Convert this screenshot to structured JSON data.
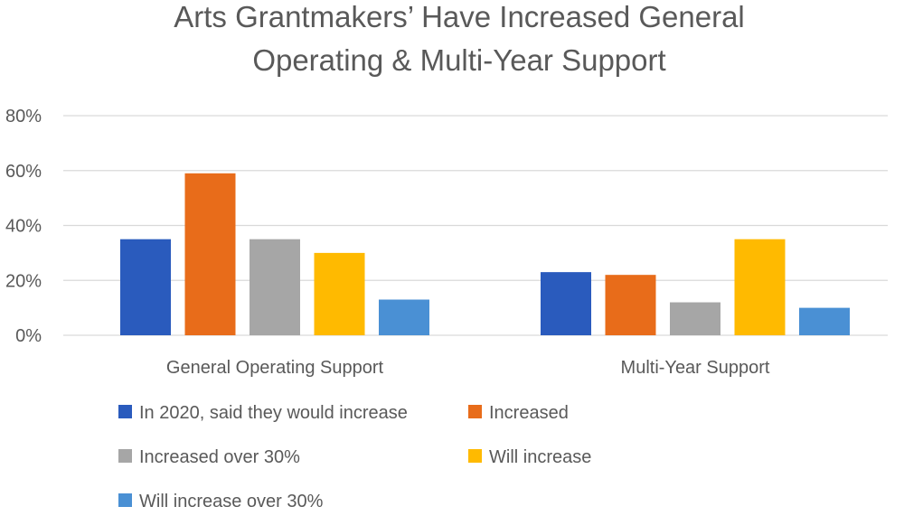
{
  "chart_data": {
    "type": "bar",
    "title_lines": [
      "Arts Grantmakers’ Have Increased General",
      "Operating & Multi-Year Support"
    ],
    "categories": [
      "General Operating Support",
      "Multi-Year Support"
    ],
    "series": [
      {
        "name": "In 2020, said they would increase",
        "color": "#2a5bbd",
        "values": [
          35,
          23
        ]
      },
      {
        "name": "Increased",
        "color": "#e86c1a",
        "values": [
          59,
          22
        ]
      },
      {
        "name": "Increased over 30%",
        "color": "#a6a6a6",
        "values": [
          35,
          12
        ]
      },
      {
        "name": "Will increase",
        "color": "#ffba00",
        "values": [
          30,
          35
        ]
      },
      {
        "name": "Will increase over 30%",
        "color": "#4a90d4",
        "values": [
          13,
          10
        ]
      }
    ],
    "yticks": [
      0,
      20,
      40,
      60,
      80
    ],
    "ytick_labels": [
      "0%",
      "20%",
      "40%",
      "60%",
      "80%"
    ],
    "ylim": [
      0,
      80
    ],
    "value_format": "percent",
    "grid": true,
    "legend_position": "bottom"
  }
}
